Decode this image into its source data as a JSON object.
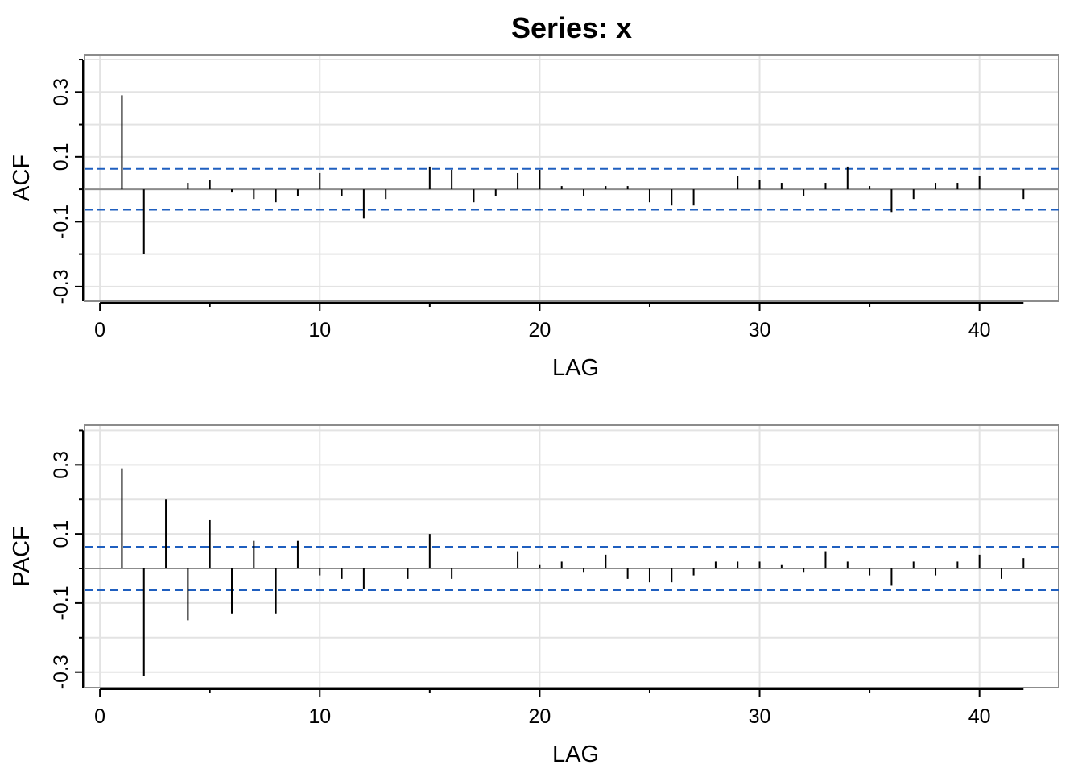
{
  "title": "Series:  x",
  "colors": {
    "grid": "#e3e3e3",
    "frame": "#8c8c8c",
    "zero_line": "#8c8c8c",
    "bars": "#000000",
    "confidence": "#1f5fbf"
  },
  "chart_data": [
    {
      "type": "bar",
      "panel": "ACF",
      "ylabel": "ACF",
      "xlabel": "LAG",
      "xlim": [
        -0.7,
        43.6
      ],
      "ylim": [
        -0.345,
        0.415
      ],
      "xticks": [
        0,
        10,
        20,
        30,
        40
      ],
      "yticks": [
        -0.3,
        -0.1,
        0.1,
        0.3
      ],
      "ytick_labels": [
        "-0.3",
        "-0.1",
        "0.1",
        "0.3"
      ],
      "grid": true,
      "confidence_band": 0.063,
      "x": [
        1,
        2,
        3,
        4,
        5,
        6,
        7,
        8,
        9,
        10,
        11,
        12,
        13,
        14,
        15,
        16,
        17,
        18,
        19,
        20,
        21,
        22,
        23,
        24,
        25,
        26,
        27,
        28,
        29,
        30,
        31,
        32,
        33,
        34,
        35,
        36,
        37,
        38,
        39,
        40,
        41,
        42
      ],
      "values": [
        0.29,
        -0.2,
        0.0,
        0.02,
        0.03,
        -0.01,
        -0.03,
        -0.04,
        -0.02,
        0.05,
        -0.02,
        -0.09,
        -0.03,
        0.0,
        0.07,
        0.06,
        -0.04,
        -0.02,
        0.05,
        0.06,
        0.01,
        -0.02,
        0.01,
        0.01,
        -0.04,
        -0.05,
        -0.05,
        0.0,
        0.04,
        0.03,
        0.02,
        -0.02,
        0.02,
        0.07,
        0.01,
        -0.07,
        -0.03,
        0.02,
        0.02,
        0.04,
        0.0,
        -0.03
      ]
    },
    {
      "type": "bar",
      "panel": "PACF",
      "ylabel": "PACF",
      "xlabel": "LAG",
      "xlim": [
        -0.7,
        43.6
      ],
      "ylim": [
        -0.345,
        0.415
      ],
      "xticks": [
        0,
        10,
        20,
        30,
        40
      ],
      "yticks": [
        -0.3,
        -0.1,
        0.1,
        0.3
      ],
      "ytick_labels": [
        "-0.3",
        "-0.1",
        "0.1",
        "0.3"
      ],
      "grid": true,
      "confidence_band": 0.063,
      "x": [
        1,
        2,
        3,
        4,
        5,
        6,
        7,
        8,
        9,
        10,
        11,
        12,
        13,
        14,
        15,
        16,
        17,
        18,
        19,
        20,
        21,
        22,
        23,
        24,
        25,
        26,
        27,
        28,
        29,
        30,
        31,
        32,
        33,
        34,
        35,
        36,
        37,
        38,
        39,
        40,
        41,
        42
      ],
      "values": [
        0.29,
        -0.31,
        0.2,
        -0.15,
        0.14,
        -0.13,
        0.08,
        -0.13,
        0.08,
        -0.02,
        -0.03,
        -0.06,
        0.0,
        -0.03,
        0.1,
        -0.03,
        0.0,
        0.0,
        0.05,
        0.01,
        0.02,
        -0.01,
        0.04,
        -0.03,
        -0.04,
        -0.04,
        -0.02,
        0.02,
        0.02,
        0.02,
        0.01,
        -0.01,
        0.05,
        0.02,
        -0.02,
        -0.05,
        0.02,
        -0.02,
        0.02,
        0.04,
        -0.03,
        0.03
      ]
    }
  ]
}
